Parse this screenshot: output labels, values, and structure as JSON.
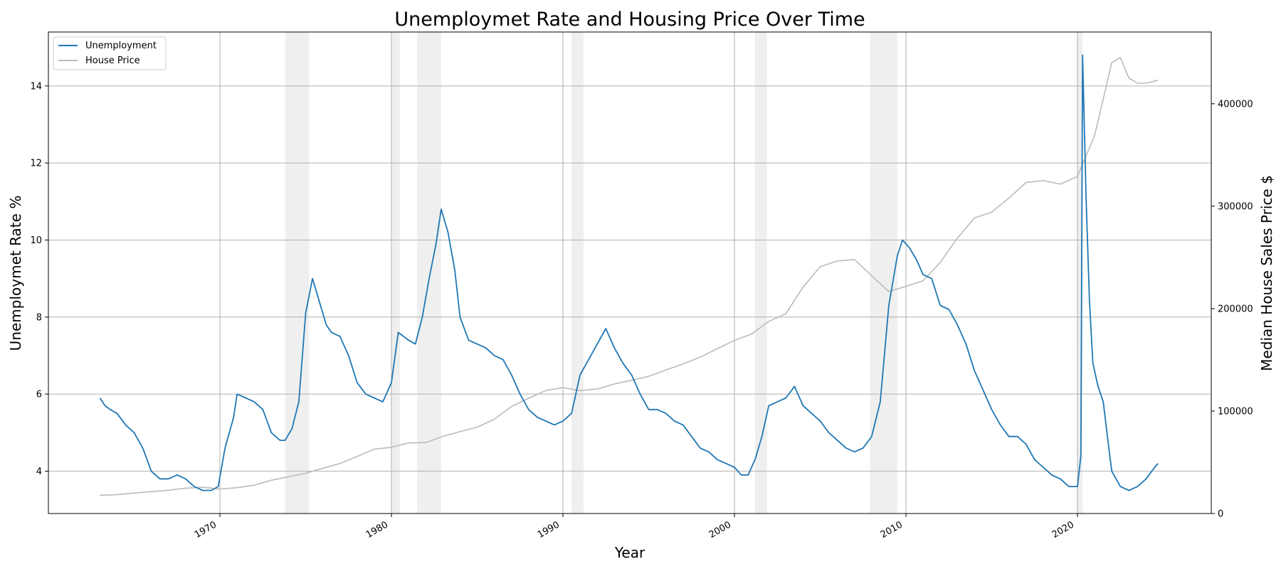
{
  "chart_data": {
    "type": "line",
    "title": "Unemploymet Rate and Housing Price Over Time",
    "xlabel": "Year",
    "ylabel_left": "Unemploymet Rate %",
    "ylabel_right": "Median House Sales Price $",
    "xlim": [
      1960.0,
      2027.8
    ],
    "ylim_left": [
      2.9,
      15.4
    ],
    "ylim_right": [
      0,
      470000
    ],
    "x_ticks": [
      1970,
      1980,
      1990,
      2000,
      2010,
      2020
    ],
    "y_ticks_left": [
      4,
      6,
      8,
      10,
      12,
      14
    ],
    "y_ticks_right": [
      0,
      100000,
      200000,
      300000,
      400000
    ],
    "y_tick_labels_right": [
      "0",
      "100000",
      "200000",
      "300000",
      "400000"
    ],
    "grid": true,
    "legend_position": "top-left",
    "recessions": [
      [
        1973.8,
        1975.2
      ],
      [
        1980.0,
        1980.5
      ],
      [
        1981.5,
        1982.9
      ],
      [
        1990.5,
        1991.2
      ],
      [
        2001.2,
        2001.9
      ],
      [
        2007.9,
        2009.5
      ],
      [
        2020.0,
        2020.3
      ]
    ],
    "series": [
      {
        "name": "Unemployment",
        "axis": "left",
        "color": "#1f77b4",
        "points": [
          [
            1963.0,
            5.9
          ],
          [
            1963.3,
            5.7
          ],
          [
            1963.6,
            5.6
          ],
          [
            1964.0,
            5.5
          ],
          [
            1964.5,
            5.2
          ],
          [
            1965.0,
            5.0
          ],
          [
            1965.5,
            4.6
          ],
          [
            1966.0,
            4.0
          ],
          [
            1966.5,
            3.8
          ],
          [
            1967.0,
            3.8
          ],
          [
            1967.5,
            3.9
          ],
          [
            1968.0,
            3.8
          ],
          [
            1968.5,
            3.6
          ],
          [
            1969.0,
            3.5
          ],
          [
            1969.5,
            3.5
          ],
          [
            1969.9,
            3.6
          ],
          [
            1970.3,
            4.6
          ],
          [
            1970.8,
            5.4
          ],
          [
            1971.0,
            6.0
          ],
          [
            1971.5,
            5.9
          ],
          [
            1972.0,
            5.8
          ],
          [
            1972.5,
            5.6
          ],
          [
            1973.0,
            5.0
          ],
          [
            1973.5,
            4.8
          ],
          [
            1973.8,
            4.8
          ],
          [
            1974.2,
            5.1
          ],
          [
            1974.6,
            5.8
          ],
          [
            1975.0,
            8.1
          ],
          [
            1975.4,
            9.0
          ],
          [
            1975.8,
            8.4
          ],
          [
            1976.2,
            7.8
          ],
          [
            1976.5,
            7.6
          ],
          [
            1977.0,
            7.5
          ],
          [
            1977.5,
            7.0
          ],
          [
            1978.0,
            6.3
          ],
          [
            1978.5,
            6.0
          ],
          [
            1979.0,
            5.9
          ],
          [
            1979.5,
            5.8
          ],
          [
            1980.0,
            6.3
          ],
          [
            1980.4,
            7.6
          ],
          [
            1980.7,
            7.5
          ],
          [
            1981.0,
            7.4
          ],
          [
            1981.4,
            7.3
          ],
          [
            1981.8,
            8.0
          ],
          [
            1982.2,
            9.0
          ],
          [
            1982.6,
            9.9
          ],
          [
            1982.9,
            10.8
          ],
          [
            1983.3,
            10.2
          ],
          [
            1983.7,
            9.2
          ],
          [
            1984.0,
            8.0
          ],
          [
            1984.5,
            7.4
          ],
          [
            1985.0,
            7.3
          ],
          [
            1985.5,
            7.2
          ],
          [
            1986.0,
            7.0
          ],
          [
            1986.5,
            6.9
          ],
          [
            1987.0,
            6.5
          ],
          [
            1987.5,
            6.0
          ],
          [
            1988.0,
            5.6
          ],
          [
            1988.5,
            5.4
          ],
          [
            1989.0,
            5.3
          ],
          [
            1989.5,
            5.2
          ],
          [
            1990.0,
            5.3
          ],
          [
            1990.5,
            5.5
          ],
          [
            1991.0,
            6.5
          ],
          [
            1991.5,
            6.9
          ],
          [
            1992.0,
            7.3
          ],
          [
            1992.5,
            7.7
          ],
          [
            1993.0,
            7.2
          ],
          [
            1993.5,
            6.8
          ],
          [
            1994.0,
            6.5
          ],
          [
            1994.5,
            6.0
          ],
          [
            1995.0,
            5.6
          ],
          [
            1995.5,
            5.6
          ],
          [
            1996.0,
            5.5
          ],
          [
            1996.5,
            5.3
          ],
          [
            1997.0,
            5.2
          ],
          [
            1997.5,
            4.9
          ],
          [
            1998.0,
            4.6
          ],
          [
            1998.5,
            4.5
          ],
          [
            1999.0,
            4.3
          ],
          [
            1999.5,
            4.2
          ],
          [
            2000.0,
            4.1
          ],
          [
            2000.4,
            3.9
          ],
          [
            2000.8,
            3.9
          ],
          [
            2001.2,
            4.3
          ],
          [
            2001.6,
            4.9
          ],
          [
            2002.0,
            5.7
          ],
          [
            2002.5,
            5.8
          ],
          [
            2003.0,
            5.9
          ],
          [
            2003.5,
            6.2
          ],
          [
            2004.0,
            5.7
          ],
          [
            2004.5,
            5.5
          ],
          [
            2005.0,
            5.3
          ],
          [
            2005.5,
            5.0
          ],
          [
            2006.0,
            4.8
          ],
          [
            2006.5,
            4.6
          ],
          [
            2007.0,
            4.5
          ],
          [
            2007.5,
            4.6
          ],
          [
            2008.0,
            4.9
          ],
          [
            2008.5,
            5.8
          ],
          [
            2009.0,
            8.3
          ],
          [
            2009.5,
            9.6
          ],
          [
            2009.8,
            10.0
          ],
          [
            2010.2,
            9.8
          ],
          [
            2010.6,
            9.5
          ],
          [
            2011.0,
            9.1
          ],
          [
            2011.5,
            9.0
          ],
          [
            2012.0,
            8.3
          ],
          [
            2012.5,
            8.2
          ],
          [
            2013.0,
            7.8
          ],
          [
            2013.5,
            7.3
          ],
          [
            2014.0,
            6.6
          ],
          [
            2014.5,
            6.1
          ],
          [
            2015.0,
            5.6
          ],
          [
            2015.5,
            5.2
          ],
          [
            2016.0,
            4.9
          ],
          [
            2016.5,
            4.9
          ],
          [
            2017.0,
            4.7
          ],
          [
            2017.5,
            4.3
          ],
          [
            2018.0,
            4.1
          ],
          [
            2018.5,
            3.9
          ],
          [
            2019.0,
            3.8
          ],
          [
            2019.5,
            3.6
          ],
          [
            2020.0,
            3.6
          ],
          [
            2020.2,
            4.4
          ],
          [
            2020.3,
            14.8
          ],
          [
            2020.5,
            11.1
          ],
          [
            2020.7,
            8.4
          ],
          [
            2020.9,
            6.8
          ],
          [
            2021.2,
            6.2
          ],
          [
            2021.5,
            5.8
          ],
          [
            2021.8,
            4.7
          ],
          [
            2022.0,
            4.0
          ],
          [
            2022.5,
            3.6
          ],
          [
            2023.0,
            3.5
          ],
          [
            2023.5,
            3.6
          ],
          [
            2024.0,
            3.8
          ],
          [
            2024.5,
            4.1
          ],
          [
            2024.7,
            4.2
          ]
        ]
      },
      {
        "name": "House Price",
        "axis": "right",
        "color": "#bbbbbb",
        "points": [
          [
            1963.0,
            17800
          ],
          [
            1964.0,
            18500
          ],
          [
            1965.0,
            20000
          ],
          [
            1966.0,
            21400
          ],
          [
            1967.0,
            22700
          ],
          [
            1968.0,
            24700
          ],
          [
            1969.0,
            25600
          ],
          [
            1970.0,
            23900
          ],
          [
            1971.0,
            25200
          ],
          [
            1972.0,
            27600
          ],
          [
            1973.0,
            32500
          ],
          [
            1974.0,
            35900
          ],
          [
            1975.0,
            39300
          ],
          [
            1976.0,
            44200
          ],
          [
            1977.0,
            48800
          ],
          [
            1978.0,
            55700
          ],
          [
            1979.0,
            62900
          ],
          [
            1980.0,
            64600
          ],
          [
            1981.0,
            68900
          ],
          [
            1982.0,
            69300
          ],
          [
            1983.0,
            75300
          ],
          [
            1984.0,
            79900
          ],
          [
            1985.0,
            84300
          ],
          [
            1986.0,
            92000
          ],
          [
            1987.0,
            104500
          ],
          [
            1988.0,
            112500
          ],
          [
            1989.0,
            120000
          ],
          [
            1990.0,
            122900
          ],
          [
            1991.0,
            120000
          ],
          [
            1992.0,
            121500
          ],
          [
            1993.0,
            126500
          ],
          [
            1994.0,
            130000
          ],
          [
            1995.0,
            133900
          ],
          [
            1996.0,
            140000
          ],
          [
            1997.0,
            146000
          ],
          [
            1998.0,
            152500
          ],
          [
            1999.0,
            161000
          ],
          [
            2000.0,
            169000
          ],
          [
            2001.0,
            175200
          ],
          [
            2002.0,
            187600
          ],
          [
            2003.0,
            195000
          ],
          [
            2004.0,
            221000
          ],
          [
            2005.0,
            240900
          ],
          [
            2006.0,
            246500
          ],
          [
            2007.0,
            247900
          ],
          [
            2008.0,
            232100
          ],
          [
            2009.0,
            216700
          ],
          [
            2010.0,
            221800
          ],
          [
            2011.0,
            227200
          ],
          [
            2012.0,
            245200
          ],
          [
            2013.0,
            268900
          ],
          [
            2014.0,
            288500
          ],
          [
            2015.0,
            294200
          ],
          [
            2016.0,
            307800
          ],
          [
            2017.0,
            323100
          ],
          [
            2018.0,
            325000
          ],
          [
            2019.0,
            321500
          ],
          [
            2020.0,
            329000
          ],
          [
            2021.0,
            369000
          ],
          [
            2022.0,
            440000
          ],
          [
            2022.5,
            445000
          ],
          [
            2023.0,
            425000
          ],
          [
            2023.5,
            420000
          ],
          [
            2024.0,
            420000
          ],
          [
            2024.7,
            423000
          ]
        ]
      }
    ]
  }
}
